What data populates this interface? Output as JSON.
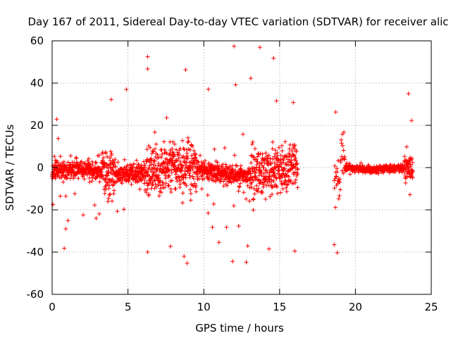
{
  "chart_data": {
    "type": "scatter",
    "title": "Day 167 of 2011, Sidereal Day-to-day VTEC variation (SDTVAR) for receiver alic",
    "xlabel": "GPS time / hours",
    "ylabel": "SDTVAR / TECUs",
    "xlim": [
      0,
      25
    ],
    "ylim": [
      -60,
      60
    ],
    "xticks": [
      0,
      5,
      10,
      15,
      20,
      25
    ],
    "yticks": [
      -60,
      -40,
      -20,
      0,
      20,
      40,
      60
    ],
    "grid": true,
    "marker": "+",
    "color": "#ff0000",
    "series": [
      {
        "name": "SDTVAR",
        "segments": [
          {
            "x_start": 0.0,
            "x_end": 16.2,
            "step": 0.01,
            "scatter_std": 3.5
          },
          {
            "x_start": 18.6,
            "x_end": 19.3,
            "step": 0.02,
            "scatter_std": 6.0
          },
          {
            "x_start": 19.3,
            "x_end": 23.8,
            "step": 0.01,
            "scatter_std": 0.8
          }
        ],
        "outliers": [
          {
            "x": 6.3,
            "y": 52.5
          },
          {
            "x": 6.3,
            "y": 46.7
          },
          {
            "x": 8.8,
            "y": 46.3
          },
          {
            "x": 12.0,
            "y": 57.4
          },
          {
            "x": 13.7,
            "y": 56.9
          },
          {
            "x": 14.6,
            "y": 51.8
          },
          {
            "x": 13.1,
            "y": 42.3
          },
          {
            "x": 12.1,
            "y": 39.2
          },
          {
            "x": 10.3,
            "y": 37.1
          },
          {
            "x": 4.9,
            "y": 37.0
          },
          {
            "x": 3.9,
            "y": 32.2
          },
          {
            "x": 14.8,
            "y": 31.6
          },
          {
            "x": 15.9,
            "y": 30.8
          },
          {
            "x": 23.5,
            "y": 35.0
          },
          {
            "x": 23.7,
            "y": 22.3
          },
          {
            "x": 0.3,
            "y": 22.9
          },
          {
            "x": 18.7,
            "y": 26.3
          },
          {
            "x": 8.9,
            "y": -45.3
          },
          {
            "x": 11.9,
            "y": -44.4
          },
          {
            "x": 12.8,
            "y": -44.8
          },
          {
            "x": 8.7,
            "y": -42.0
          },
          {
            "x": 6.3,
            "y": -40.0
          },
          {
            "x": 16.0,
            "y": -39.5
          },
          {
            "x": 18.8,
            "y": -40.3
          },
          {
            "x": 0.8,
            "y": -38.2
          },
          {
            "x": 14.3,
            "y": -38.5
          },
          {
            "x": 7.8,
            "y": -37.3
          },
          {
            "x": 12.9,
            "y": -37.1
          },
          {
            "x": 18.6,
            "y": -36.5
          },
          {
            "x": 11.0,
            "y": -35.4
          },
          {
            "x": 0.9,
            "y": -29.0
          },
          {
            "x": 23.6,
            "y": -12.8
          }
        ]
      }
    ]
  }
}
